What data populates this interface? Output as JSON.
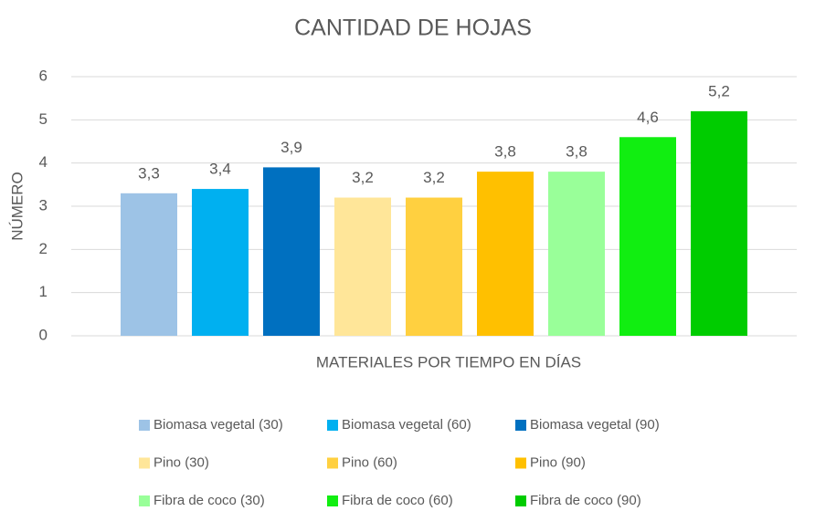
{
  "chart_data": {
    "type": "bar",
    "title": "CANTIDAD DE HOJAS",
    "x_label": "MATERIALES POR TIEMPO EN DÍAS",
    "y_label": "NÚMERO",
    "categories": [
      null
    ],
    "series": [
      {
        "name": "Biomasa vegetal (30)",
        "color": "#9dc3e6",
        "values": [
          3.3
        ],
        "value_labels": [
          "3,3"
        ]
      },
      {
        "name": "Biomasa vegetal (60)",
        "color": "#00b0f0",
        "values": [
          3.4
        ],
        "value_labels": [
          "3,4"
        ]
      },
      {
        "name": "Biomasa vegetal (90)",
        "color": "#0070c0",
        "values": [
          3.9
        ],
        "value_labels": [
          "3,9"
        ]
      },
      {
        "name": "Pino (30)",
        "color": "#ffe699",
        "values": [
          3.2
        ],
        "value_labels": [
          "3,2"
        ]
      },
      {
        "name": "Pino (60)",
        "color": "#ffd040",
        "values": [
          3.2
        ],
        "value_labels": [
          "3,2"
        ]
      },
      {
        "name": "Pino (90)",
        "color": "#ffc000",
        "values": [
          3.8
        ],
        "value_labels": [
          "3,8"
        ]
      },
      {
        "name": "Fibra de coco (30)",
        "color": "#99ff99",
        "values": [
          3.8
        ],
        "value_labels": [
          "3,8"
        ]
      },
      {
        "name": "Fibra de coco (60)",
        "color": "#11ee11",
        "values": [
          4.6
        ],
        "value_labels": [
          "4,6"
        ]
      },
      {
        "name": "Fibra de coco (90)",
        "color": "#00cc00",
        "values": [
          5.2
        ],
        "value_labels": [
          "5,2"
        ]
      }
    ],
    "ylim": [
      0,
      6
    ],
    "yticks": [
      0,
      1,
      2,
      3,
      4,
      5,
      6
    ],
    "grid": true,
    "legend": "bottom"
  }
}
